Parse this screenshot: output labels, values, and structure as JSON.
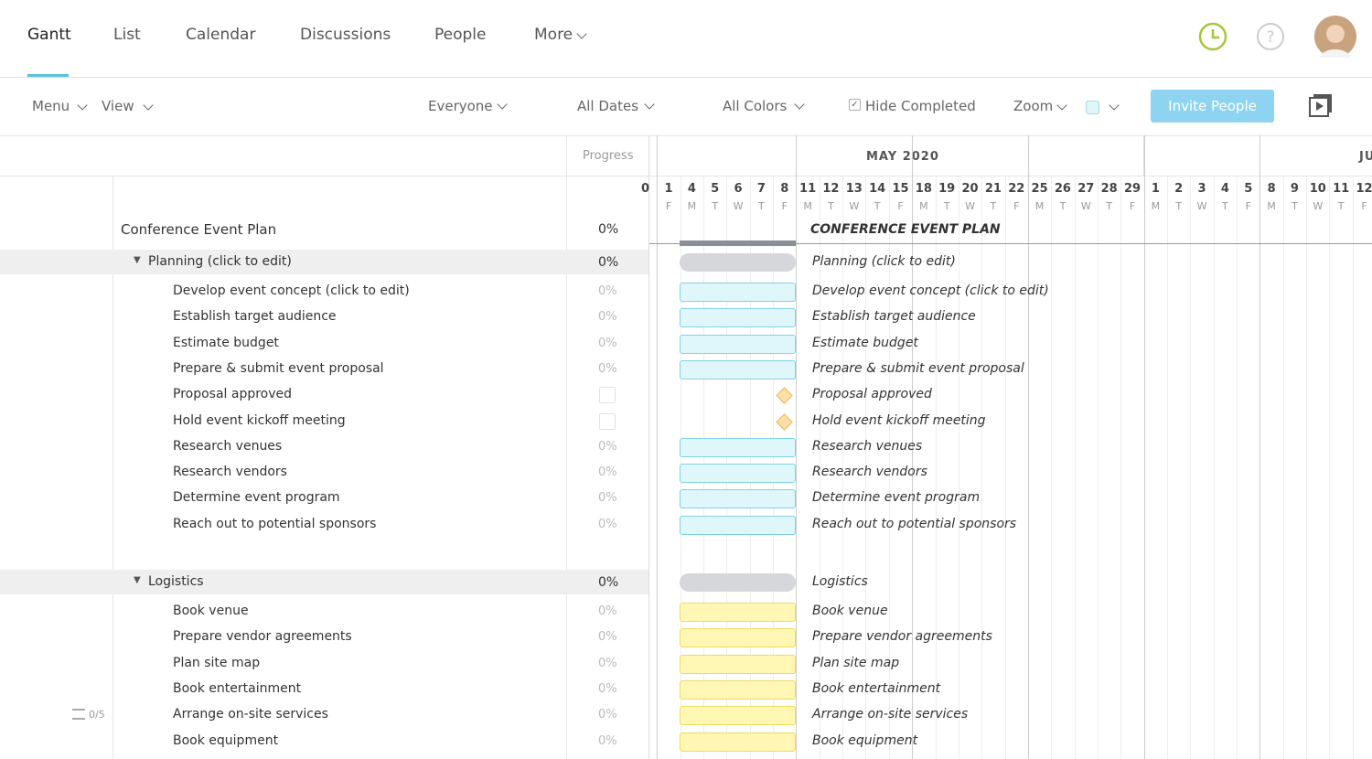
{
  "nav": {
    "tabs": [
      "Gantt",
      "List",
      "Calendar",
      "Discussions",
      "People",
      "More"
    ]
  },
  "toolbar": {
    "menu": "Menu",
    "view": "View",
    "everyone": "Everyone",
    "dates": "All Dates",
    "colors": "All Colors",
    "hide_completed": "Hide Completed",
    "zoom": "Zoom",
    "invite": "Invite People"
  },
  "grid": {
    "progress_header": "Progress",
    "month": "MAY 2020",
    "next_month": "JU",
    "days": [
      {
        "day": "0"
      },
      {
        "day": "1",
        "weekday": "F"
      },
      {
        "day": "4",
        "weekday": "M"
      },
      {
        "day": "5",
        "weekday": "T"
      },
      {
        "day": "6",
        "weekday": "W"
      },
      {
        "day": "7",
        "weekday": "T"
      },
      {
        "day": "8",
        "weekday": "F"
      },
      {
        "day": "11",
        "weekday": "M"
      },
      {
        "day": "12",
        "weekday": "T"
      },
      {
        "day": "13",
        "weekday": "W"
      },
      {
        "day": "14",
        "weekday": "T"
      },
      {
        "day": "15",
        "weekday": "F"
      },
      {
        "day": "18",
        "weekday": "M"
      },
      {
        "day": "19",
        "weekday": "T"
      },
      {
        "day": "20",
        "weekday": "W"
      },
      {
        "day": "21",
        "weekday": "T"
      },
      {
        "day": "22",
        "weekday": "F"
      },
      {
        "day": "25",
        "weekday": "M"
      },
      {
        "day": "26",
        "weekday": "T"
      },
      {
        "day": "27",
        "weekday": "W"
      },
      {
        "day": "28",
        "weekday": "T"
      },
      {
        "day": "29",
        "weekday": "F"
      },
      {
        "day": "1",
        "weekday": "M"
      },
      {
        "day": "2",
        "weekday": "T"
      },
      {
        "day": "3",
        "weekday": "W"
      },
      {
        "day": "4",
        "weekday": "T"
      },
      {
        "day": "5",
        "weekday": "F"
      },
      {
        "day": "8",
        "weekday": "M"
      },
      {
        "day": "9",
        "weekday": "T"
      },
      {
        "day": "10",
        "weekday": "W"
      },
      {
        "day": "11",
        "weekday": "T"
      },
      {
        "day": "12",
        "weekday": "F"
      }
    ]
  },
  "project": {
    "name": "Conference Event Plan",
    "progress": "0%",
    "gantt_label": "CONFERENCE EVENT PLAN"
  },
  "groups": [
    {
      "name": "Planning (click to edit)",
      "progress": "0%",
      "color": "#dff6fb",
      "border": "#7fd2e6",
      "tasks": [
        {
          "name": "Develop event concept (click to edit)",
          "progress": "0%"
        },
        {
          "name": "Establish target audience",
          "progress": "0%"
        },
        {
          "name": "Estimate budget",
          "progress": "0%"
        },
        {
          "name": "Prepare & submit event proposal",
          "progress": "0%"
        },
        {
          "name": "Proposal approved",
          "milestone": true
        },
        {
          "name": "Hold event kickoff meeting",
          "milestone": true
        },
        {
          "name": "Research venues",
          "progress": "0%"
        },
        {
          "name": "Research vendors",
          "progress": "0%"
        },
        {
          "name": "Determine event program",
          "progress": "0%"
        },
        {
          "name": "Reach out to potential sponsors",
          "progress": "0%"
        }
      ]
    },
    {
      "name": "Logistics",
      "progress": "0%",
      "color": "#fff7b3",
      "border": "#f0d960",
      "tasks": [
        {
          "name": "Book venue",
          "progress": "0%"
        },
        {
          "name": "Prepare vendor agreements",
          "progress": "0%"
        },
        {
          "name": "Plan site map",
          "progress": "0%"
        },
        {
          "name": "Book entertainment",
          "progress": "0%"
        },
        {
          "name": "Arrange on-site services",
          "progress": "0%",
          "checklist": "0/5"
        },
        {
          "name": "Book equipment",
          "progress": "0%"
        }
      ]
    }
  ]
}
